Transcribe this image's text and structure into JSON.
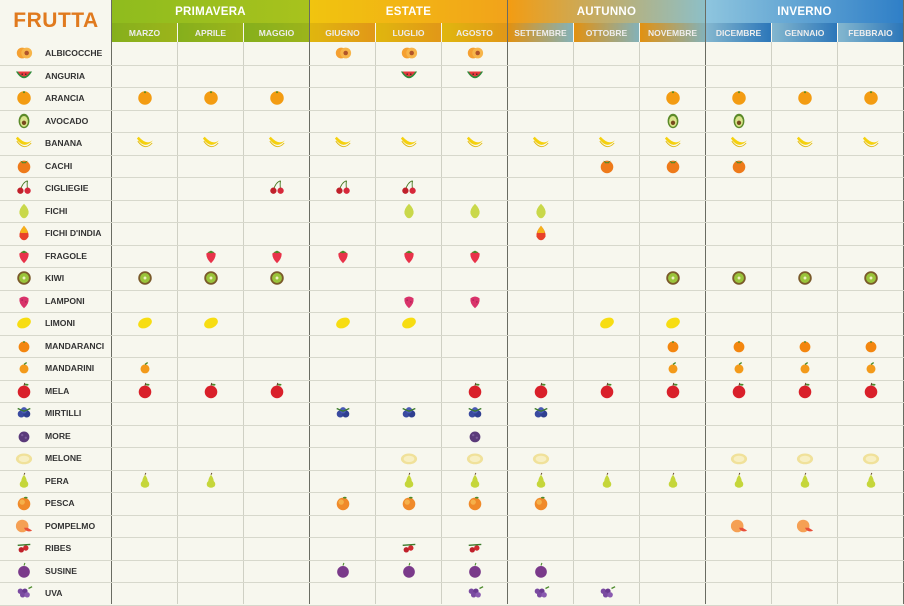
{
  "title": "FRUTTA",
  "seasons": [
    {
      "name": "PRIMAVERA",
      "months": 3,
      "color_a": "#8fbc1e",
      "color_b": "#a8c21d"
    },
    {
      "name": "ESTATE",
      "months": 3,
      "color_a": "#f1c40f",
      "color_b": "#f2a31a"
    },
    {
      "name": "AUTUNNO",
      "months": 3,
      "color_a": "#f39c12",
      "color_b": "#8dbfc7"
    },
    {
      "name": "INVERNO",
      "months": 3,
      "color_a": "#8ec5de",
      "color_b": "#2f7fc7"
    }
  ],
  "months": [
    "MARZO",
    "APRILE",
    "MAGGIO",
    "GIUGNO",
    "LUGLIO",
    "AGOSTO",
    "SETTEMBRE",
    "OTTOBRE",
    "NOVEMBRE",
    "DICEMBRE",
    "GENNAIO",
    "FEBBRAIO"
  ],
  "fruits": [
    {
      "name": "ALBICOCCHE",
      "icon": "apricot-icon",
      "months": [
        3,
        4,
        5
      ]
    },
    {
      "name": "ANGURIA",
      "icon": "watermelon-icon",
      "months": [
        4,
        5
      ]
    },
    {
      "name": "ARANCIA",
      "icon": "orange-icon",
      "months": [
        0,
        1,
        2,
        8,
        9,
        10,
        11
      ]
    },
    {
      "name": "AVOCADO",
      "icon": "avocado-icon",
      "months": [
        8,
        9
      ]
    },
    {
      "name": "BANANA",
      "icon": "banana-icon",
      "months": [
        0,
        1,
        2,
        3,
        4,
        5,
        6,
        7,
        8,
        9,
        10,
        11
      ]
    },
    {
      "name": "CACHI",
      "icon": "persimmon-icon",
      "months": [
        7,
        8,
        9
      ]
    },
    {
      "name": "CIGLIEGIE",
      "icon": "cherry-icon",
      "months": [
        2,
        3,
        4
      ]
    },
    {
      "name": "FICHI",
      "icon": "fig-icon",
      "months": [
        4,
        5,
        6
      ]
    },
    {
      "name": "FICHI D'INDIA",
      "icon": "prickly-pear-icon",
      "months": [
        6
      ]
    },
    {
      "name": "FRAGOLE",
      "icon": "strawberry-icon",
      "months": [
        1,
        2,
        3,
        4,
        5
      ]
    },
    {
      "name": "KIWI",
      "icon": "kiwi-icon",
      "months": [
        0,
        1,
        2,
        8,
        9,
        10,
        11
      ]
    },
    {
      "name": "LAMPONI",
      "icon": "raspberry-icon",
      "months": [
        4,
        5
      ]
    },
    {
      "name": "LIMONI",
      "icon": "lemon-icon",
      "months": [
        0,
        1,
        3,
        4,
        7,
        8
      ]
    },
    {
      "name": "MANDARANCI",
      "icon": "mandarin-orange-icon",
      "months": [
        8,
        9,
        10,
        11
      ]
    },
    {
      "name": "MANDARINI",
      "icon": "mandarin-icon",
      "months": [
        0,
        8,
        9,
        10,
        11
      ]
    },
    {
      "name": "MELA",
      "icon": "apple-icon",
      "months": [
        0,
        1,
        2,
        5,
        6,
        7,
        8,
        9,
        10,
        11
      ]
    },
    {
      "name": "MIRTILLI",
      "icon": "blueberry-icon",
      "months": [
        3,
        4,
        5,
        6
      ]
    },
    {
      "name": "MORE",
      "icon": "blackberry-icon",
      "months": [
        5
      ]
    },
    {
      "name": "MELONE",
      "icon": "melon-icon",
      "months": [
        4,
        5,
        6,
        9,
        10,
        11
      ]
    },
    {
      "name": "PERA",
      "icon": "pear-icon",
      "months": [
        0,
        1,
        4,
        5,
        6,
        7,
        8,
        9,
        10,
        11
      ]
    },
    {
      "name": "PESCA",
      "icon": "peach-icon",
      "months": [
        3,
        4,
        5,
        6
      ]
    },
    {
      "name": "POMPELMO",
      "icon": "grapefruit-icon",
      "months": [
        9,
        10
      ]
    },
    {
      "name": "RIBES",
      "icon": "currant-icon",
      "months": [
        4,
        5
      ]
    },
    {
      "name": "SUSINE",
      "icon": "plum-icon",
      "months": [
        3,
        4,
        5,
        6
      ]
    },
    {
      "name": "UVA",
      "icon": "grape-icon",
      "months": [
        5,
        6,
        7
      ]
    }
  ]
}
